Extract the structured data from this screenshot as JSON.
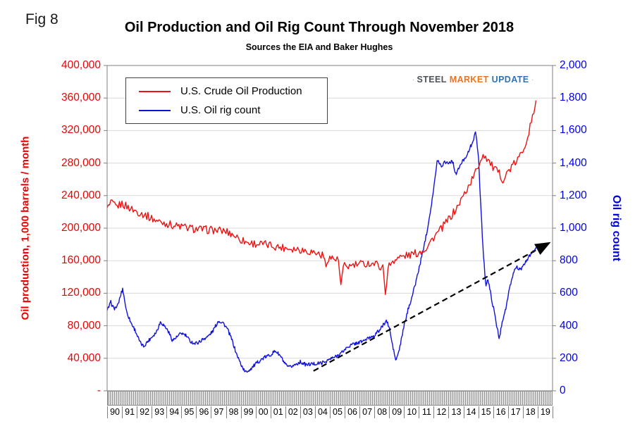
{
  "fig_label": "Fig 8",
  "title": "Oil Production and Oil Rig Count Through November 2018",
  "subtitle": "Sources the EIA and Baker Hughes",
  "logo": {
    "part1": "STEEL",
    "part2": "MARKET",
    "part3": "UPDATE"
  },
  "chart_data": {
    "type": "line",
    "title": "Oil Production and Oil Rig Count Through November 2018",
    "subtitle": "Sources the EIA and Baker Hughes",
    "grid": "horizontal",
    "legend_position": "top-left",
    "x": {
      "min": 1990,
      "max": 2020,
      "labels": [
        "90",
        "91",
        "92",
        "93",
        "94",
        "95",
        "96",
        "97",
        "98",
        "99",
        "00",
        "01",
        "02",
        "03",
        "04",
        "05",
        "06",
        "07",
        "08",
        "09",
        "10",
        "11",
        "12",
        "13",
        "14",
        "15",
        "16",
        "17",
        "18",
        "19"
      ]
    },
    "y_left": {
      "label": "Oil production, 1,000 barrels / month",
      "min": 0,
      "max": 400000,
      "tick_step": 40000,
      "color": "#ee0000",
      "ticks": [
        "400,000",
        "360,000",
        "320,000",
        "280,000",
        "240,000",
        "200,000",
        "160,000",
        "120,000",
        "80,000",
        "40,000",
        "-"
      ]
    },
    "y_right": {
      "label": "Oil rig count",
      "min": 0,
      "max": 2000,
      "tick_step": 200,
      "color": "#0000e6",
      "ticks": [
        "2,000",
        "1,800",
        "1,600",
        "1,400",
        "1,200",
        "1,000",
        "800",
        "600",
        "400",
        "200",
        "0"
      ]
    },
    "series": [
      {
        "name": "U.S. Crude Oil Production",
        "axis": "left",
        "color": "#ee1111",
        "jitter": 10000,
        "seed": 3,
        "step": 0.0833,
        "points": [
          [
            1990.0,
            224000
          ],
          [
            1990.3,
            231000
          ],
          [
            1990.6,
            226000
          ],
          [
            1991.0,
            230000
          ],
          [
            1991.4,
            226000
          ],
          [
            1991.8,
            222000
          ],
          [
            1992.2,
            219000
          ],
          [
            1992.6,
            216000
          ],
          [
            1993.0,
            212000
          ],
          [
            1993.5,
            208000
          ],
          [
            1994.0,
            206000
          ],
          [
            1994.5,
            203000
          ],
          [
            1995.0,
            202000
          ],
          [
            1995.5,
            200000
          ],
          [
            1996.0,
            199000
          ],
          [
            1996.5,
            198000
          ],
          [
            1997.0,
            198000
          ],
          [
            1997.5,
            197000
          ],
          [
            1998.0,
            196000
          ],
          [
            1998.5,
            192000
          ],
          [
            1999.0,
            186000
          ],
          [
            1999.5,
            182000
          ],
          [
            2000.0,
            181000
          ],
          [
            2000.5,
            180000
          ],
          [
            2001.0,
            179000
          ],
          [
            2001.5,
            177000
          ],
          [
            2002.0,
            176000
          ],
          [
            2002.5,
            175000
          ],
          [
            2003.0,
            174000
          ],
          [
            2003.5,
            172000
          ],
          [
            2004.0,
            170000
          ],
          [
            2004.6,
            166000
          ],
          [
            2004.72,
            150000
          ],
          [
            2004.85,
            164000
          ],
          [
            2005.2,
            163000
          ],
          [
            2005.6,
            160000
          ],
          [
            2005.72,
            127000
          ],
          [
            2005.95,
            154000
          ],
          [
            2006.3,
            153000
          ],
          [
            2006.8,
            155000
          ],
          [
            2007.2,
            156000
          ],
          [
            2007.7,
            157000
          ],
          [
            2008.1,
            156000
          ],
          [
            2008.6,
            151000
          ],
          [
            2008.73,
            120000
          ],
          [
            2008.95,
            153000
          ],
          [
            2009.3,
            161000
          ],
          [
            2009.7,
            164000
          ],
          [
            2010.1,
            166000
          ],
          [
            2010.6,
            168000
          ],
          [
            2011.0,
            170000
          ],
          [
            2011.5,
            176000
          ],
          [
            2012.0,
            189000
          ],
          [
            2012.5,
            199000
          ],
          [
            2013.0,
            211000
          ],
          [
            2013.5,
            223000
          ],
          [
            2014.0,
            240000
          ],
          [
            2014.5,
            257000
          ],
          [
            2014.9,
            272000
          ],
          [
            2015.3,
            291000
          ],
          [
            2015.6,
            286000
          ],
          [
            2016.0,
            274000
          ],
          [
            2016.4,
            267000
          ],
          [
            2016.7,
            259000
          ],
          [
            2017.0,
            270000
          ],
          [
            2017.3,
            276000
          ],
          [
            2017.6,
            283000
          ],
          [
            2017.9,
            291000
          ],
          [
            2018.1,
            301000
          ],
          [
            2018.35,
            315000
          ],
          [
            2018.6,
            332000
          ],
          [
            2018.75,
            343000
          ],
          [
            2018.88,
            357000
          ]
        ]
      },
      {
        "name": "U.S. Oil rig count",
        "axis": "right",
        "color": "#1111dd",
        "jitter": 22,
        "seed": 77,
        "step": 0.0417,
        "points": [
          [
            1990.0,
            490
          ],
          [
            1990.25,
            545
          ],
          [
            1990.45,
            505
          ],
          [
            1990.7,
            520
          ],
          [
            1990.95,
            600
          ],
          [
            1991.05,
            628
          ],
          [
            1991.3,
            490
          ],
          [
            1991.6,
            420
          ],
          [
            1991.9,
            370
          ],
          [
            1992.2,
            300
          ],
          [
            1992.45,
            272
          ],
          [
            1992.7,
            300
          ],
          [
            1993.0,
            330
          ],
          [
            1993.3,
            360
          ],
          [
            1993.6,
            425
          ],
          [
            1993.85,
            400
          ],
          [
            1994.1,
            370
          ],
          [
            1994.4,
            310
          ],
          [
            1994.7,
            330
          ],
          [
            1995.0,
            355
          ],
          [
            1995.3,
            340
          ],
          [
            1995.6,
            305
          ],
          [
            1995.9,
            290
          ],
          [
            1996.2,
            300
          ],
          [
            1996.5,
            320
          ],
          [
            1996.8,
            335
          ],
          [
            1997.1,
            365
          ],
          [
            1997.5,
            430
          ],
          [
            1997.8,
            420
          ],
          [
            1998.1,
            380
          ],
          [
            1998.4,
            315
          ],
          [
            1998.7,
            230
          ],
          [
            1999.0,
            165
          ],
          [
            1999.3,
            114
          ],
          [
            1999.6,
            130
          ],
          [
            1999.9,
            155
          ],
          [
            2000.2,
            180
          ],
          [
            2000.6,
            205
          ],
          [
            2001.0,
            222
          ],
          [
            2001.35,
            246
          ],
          [
            2001.7,
            210
          ],
          [
            2002.0,
            160
          ],
          [
            2002.25,
            143
          ],
          [
            2002.6,
            158
          ],
          [
            2003.0,
            178
          ],
          [
            2003.4,
            160
          ],
          [
            2003.8,
            165
          ],
          [
            2004.2,
            168
          ],
          [
            2004.6,
            175
          ],
          [
            2005.0,
            194
          ],
          [
            2005.4,
            210
          ],
          [
            2005.8,
            235
          ],
          [
            2006.2,
            270
          ],
          [
            2006.6,
            288
          ],
          [
            2007.0,
            298
          ],
          [
            2007.5,
            318
          ],
          [
            2008.0,
            342
          ],
          [
            2008.4,
            378
          ],
          [
            2008.8,
            432
          ],
          [
            2009.0,
            390
          ],
          [
            2009.2,
            290
          ],
          [
            2009.45,
            183
          ],
          [
            2009.7,
            260
          ],
          [
            2010.0,
            400
          ],
          [
            2010.3,
            510
          ],
          [
            2010.6,
            600
          ],
          [
            2010.9,
            710
          ],
          [
            2011.2,
            830
          ],
          [
            2011.5,
            960
          ],
          [
            2011.8,
            1120
          ],
          [
            2012.05,
            1280
          ],
          [
            2012.25,
            1425
          ],
          [
            2012.5,
            1380
          ],
          [
            2012.75,
            1410
          ],
          [
            2013.0,
            1400
          ],
          [
            2013.25,
            1415
          ],
          [
            2013.5,
            1330
          ],
          [
            2013.75,
            1380
          ],
          [
            2014.0,
            1420
          ],
          [
            2014.3,
            1460
          ],
          [
            2014.6,
            1530
          ],
          [
            2014.82,
            1585
          ],
          [
            2015.0,
            1460
          ],
          [
            2015.15,
            1170
          ],
          [
            2015.3,
            900
          ],
          [
            2015.5,
            645
          ],
          [
            2015.65,
            685
          ],
          [
            2015.9,
            565
          ],
          [
            2016.1,
            470
          ],
          [
            2016.25,
            395
          ],
          [
            2016.42,
            318
          ],
          [
            2016.6,
            425
          ],
          [
            2016.85,
            505
          ],
          [
            2017.1,
            625
          ],
          [
            2017.35,
            720
          ],
          [
            2017.55,
            765
          ],
          [
            2017.8,
            745
          ],
          [
            2018.0,
            758
          ],
          [
            2018.2,
            795
          ],
          [
            2018.45,
            830
          ],
          [
            2018.65,
            848
          ],
          [
            2018.88,
            882
          ]
        ]
      }
    ],
    "trend_arrow": {
      "x1": 2003.9,
      "y1": 122,
      "x2": 2019.7,
      "y2": 905,
      "axis": "right",
      "style": "dashed",
      "color": "#000000"
    }
  }
}
